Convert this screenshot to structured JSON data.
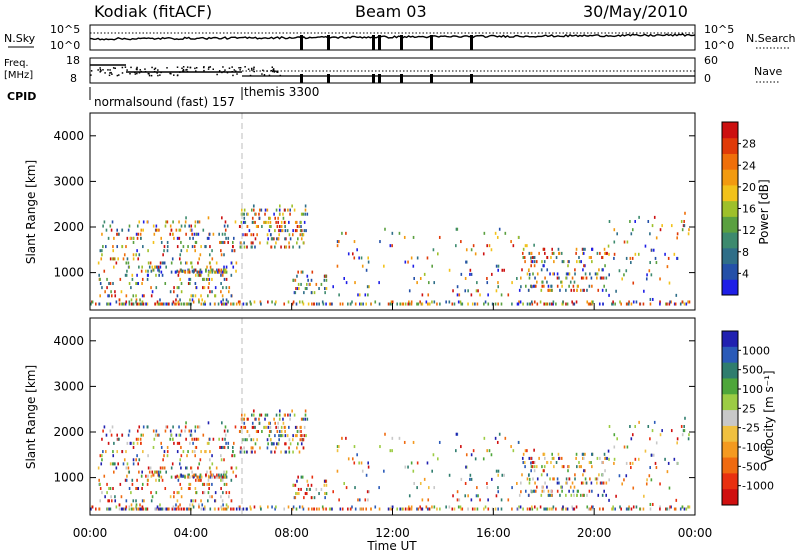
{
  "header": {
    "station": "Kodiak (fitACF)",
    "beam": "Beam 03",
    "date": "30/May/2010"
  },
  "strip_labels": {
    "nsky": "N.Sky",
    "nsky_top": "10^5",
    "nsky_bottom": "10^0",
    "nsearch": "N.Search",
    "nsearch_top": "10^5",
    "nsearch_bottom": "10^0",
    "freq_l1": "Freq.",
    "freq_l2": "[MHz]",
    "freq_top": "18",
    "freq_bottom": "8",
    "nave": "Nave",
    "nave_top": "60",
    "nave_bottom": "0",
    "cpid": "CPID",
    "cpid_mode1": "normalsound (fast) 157",
    "cpid_mode2": "themis 3300"
  },
  "chart_data": [
    {
      "type": "heatmap",
      "panel": "power",
      "ylabel": "Slant Range [km]",
      "xlabel": "Time UT",
      "ylim": [
        180,
        4500
      ],
      "xlim": [
        0,
        24
      ],
      "x_ticks": [
        "00:00",
        "04:00",
        "08:00",
        "12:00",
        "16:00",
        "20:00",
        "00:00"
      ],
      "y_ticks": [
        1000,
        2000,
        3000,
        4000
      ],
      "colorbar": {
        "label": "Power [dB]",
        "range": [
          0,
          32
        ],
        "ticks": [
          "4",
          "8",
          "12",
          "16",
          "20",
          "24",
          "28"
        ],
        "colors": [
          "#1f1fe6",
          "#2450a8",
          "#2f6e88",
          "#3d8a6e",
          "#5aa040",
          "#9ec02a",
          "#f2c21b",
          "#f29a10",
          "#ef6f0a",
          "#e03a08",
          "#cc1010"
        ]
      }
    },
    {
      "type": "heatmap",
      "panel": "velocity",
      "ylabel": "Slant Range [km]",
      "xlabel": "Time UT",
      "ylim": [
        180,
        4500
      ],
      "xlim": [
        0,
        24
      ],
      "x_ticks": [
        "00:00",
        "04:00",
        "08:00",
        "12:00",
        "16:00",
        "20:00",
        "00:00"
      ],
      "y_ticks": [
        1000,
        2000,
        3000,
        4000
      ],
      "colorbar": {
        "label": "Velocity [m s⁻¹]",
        "ticks": [
          "1000",
          "500",
          "100",
          "25",
          "-25",
          "-100",
          "-500",
          "-1000"
        ],
        "colors": [
          "#2020b0",
          "#2a5ab8",
          "#2f7d6e",
          "#4ea63a",
          "#9ccc44",
          "#c8c8c8",
          "#f0c040",
          "#f49a20",
          "#ef6a10",
          "#e83010",
          "#d01010"
        ]
      }
    }
  ]
}
